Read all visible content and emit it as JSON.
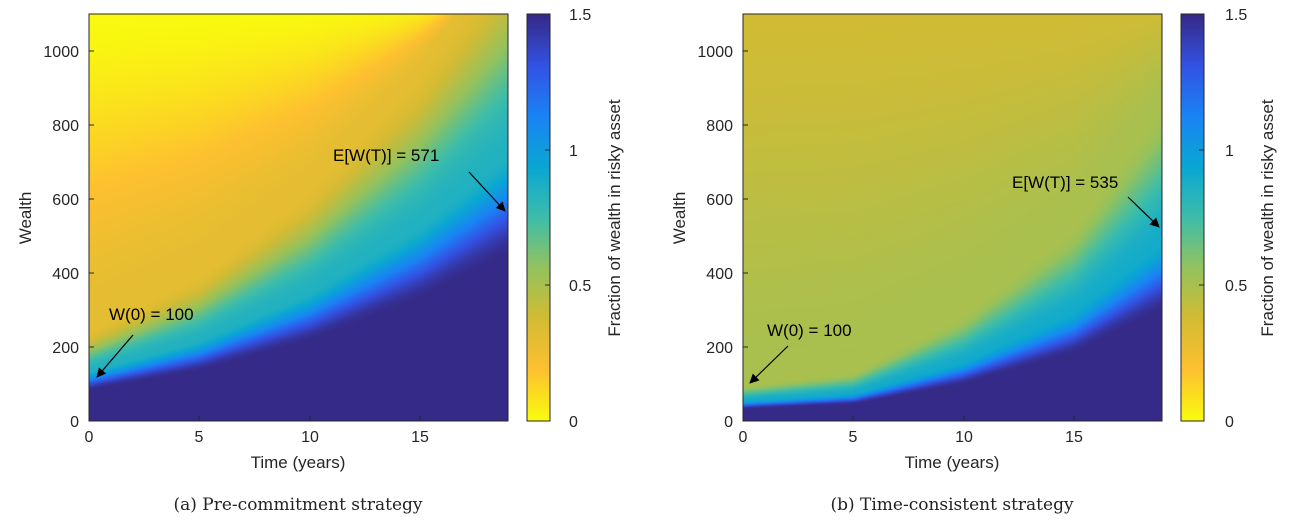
{
  "colors": {
    "colormap": [
      "#f9fb0e",
      "#fdc030",
      "#d3bb33",
      "#94c25d",
      "#3dbdaa",
      "#0aa7d3",
      "#1a84f5",
      "#3352e4",
      "#352a87"
    ],
    "colormap_max": 1.5,
    "annotation_arrow": "#000000",
    "axis": "#262626"
  },
  "chart_data": [
    {
      "type": "heatmap",
      "caption": "(a) Pre-commitment strategy",
      "title": "",
      "xlabel": "Time (years)",
      "ylabel": "Wealth",
      "xlim": [
        0,
        19
      ],
      "ylim": [
        0,
        1100
      ],
      "xticks": [
        "0",
        "5",
        "10",
        "15"
      ],
      "yticks": [
        "0",
        "200",
        "400",
        "600",
        "800",
        "1000"
      ],
      "colorbar": {
        "label": "Fraction of wealth in risky asset",
        "range": [
          0,
          1.5
        ],
        "ticks": [
          "0",
          "0.5",
          "1",
          "1.5"
        ]
      },
      "boundary_wealth": [
        {
          "t": 0,
          "w": 100
        },
        {
          "t": 5,
          "w": 163
        },
        {
          "t": 10,
          "w": 260
        },
        {
          "t": 15,
          "w": 395
        },
        {
          "t": 19,
          "w": 540
        }
      ],
      "surface": {
        "base": 0.05,
        "grow": 0.0,
        "mid_value": 0.85,
        "upper_value": 0.3,
        "top_value": 0.0
      },
      "annotations": [
        {
          "text": "W(0) = 100",
          "t": 0.3,
          "w": 108
        },
        {
          "text": "E[W(T)] = 571",
          "t": 18.9,
          "w": 560
        }
      ]
    },
    {
      "type": "heatmap",
      "caption": "(b) Time-consistent strategy",
      "title": "",
      "xlabel": "Time (years)",
      "ylabel": "Wealth",
      "xlim": [
        0,
        19
      ],
      "ylim": [
        0,
        1100
      ],
      "xticks": [
        "0",
        "5",
        "10",
        "15"
      ],
      "yticks": [
        "0",
        "200",
        "400",
        "600",
        "800",
        "1000"
      ],
      "colorbar": {
        "label": "Fraction of wealth in risky asset",
        "range": [
          0,
          1.5
        ],
        "ticks": [
          "0",
          "0.5",
          "1",
          "1.5"
        ]
      },
      "boundary_wealth": [
        {
          "t": 0,
          "w": 40
        },
        {
          "t": 5,
          "w": 55
        },
        {
          "t": 10,
          "w": 120
        },
        {
          "t": 15,
          "w": 220
        },
        {
          "t": 19,
          "w": 360
        }
      ],
      "surface": {
        "base": 0.45,
        "grow": 0.05,
        "mid_value": 0.9,
        "upper_value": 0.5,
        "top_value": 0.38
      },
      "annotations": [
        {
          "text": "W(0) = 100",
          "t": 0.3,
          "w": 95
        },
        {
          "text": "E[W(T)] = 535",
          "t": 18.9,
          "w": 515
        }
      ]
    }
  ]
}
